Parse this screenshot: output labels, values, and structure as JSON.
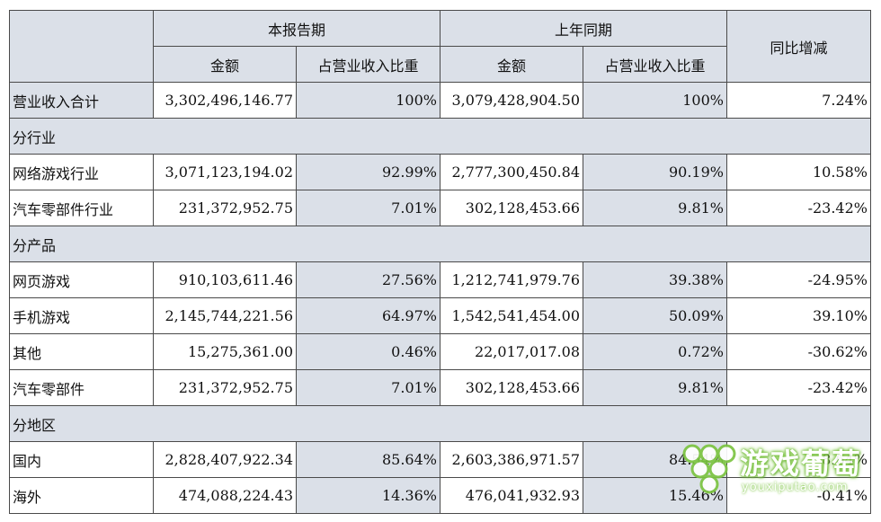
{
  "header": {
    "current_period": "本报告期",
    "prior_period": "上年同期",
    "yoy": "同比增减",
    "amount": "金额",
    "share": "占营业收入比重"
  },
  "total_row": {
    "label": "营业收入合计",
    "cur_amount": "3,302,496,146.77",
    "cur_share": "100%",
    "prior_amount": "3,079,428,904.50",
    "prior_share": "100%",
    "yoy": "7.24%"
  },
  "sections": [
    {
      "title": "分行业",
      "rows": [
        {
          "label": "网络游戏行业",
          "cur_amount": "3,071,123,194.02",
          "cur_share": "92.99%",
          "prior_amount": "2,777,300,450.84",
          "prior_share": "90.19%",
          "yoy": "10.58%"
        },
        {
          "label": "汽车零部件行业",
          "cur_amount": "231,372,952.75",
          "cur_share": "7.01%",
          "prior_amount": "302,128,453.66",
          "prior_share": "9.81%",
          "yoy": "-23.42%"
        }
      ]
    },
    {
      "title": "分产品",
      "rows": [
        {
          "label": "网页游戏",
          "cur_amount": "910,103,611.46",
          "cur_share": "27.56%",
          "prior_amount": "1,212,741,979.76",
          "prior_share": "39.38%",
          "yoy": "-24.95%"
        },
        {
          "label": "手机游戏",
          "cur_amount": "2,145,744,221.56",
          "cur_share": "64.97%",
          "prior_amount": "1,542,541,454.00",
          "prior_share": "50.09%",
          "yoy": "39.10%"
        },
        {
          "label": "其他",
          "cur_amount": "15,275,361.00",
          "cur_share": "0.46%",
          "prior_amount": "22,017,017.08",
          "prior_share": "0.72%",
          "yoy": "-30.62%"
        },
        {
          "label": "汽车零部件",
          "cur_amount": "231,372,952.75",
          "cur_share": "7.01%",
          "prior_amount": "302,128,453.66",
          "prior_share": "9.81%",
          "yoy": "-23.42%"
        }
      ]
    },
    {
      "title": "分地区",
      "rows": [
        {
          "label": "国内",
          "cur_amount": "2,828,407,922.34",
          "cur_share": "85.64%",
          "prior_amount": "2,603,386,971.57",
          "prior_share": "84.54%",
          "yoy": "8.64%"
        },
        {
          "label": "海外",
          "cur_amount": "474,088,224.43",
          "cur_share": "14.36%",
          "prior_amount": "476,041,932.93",
          "prior_share": "15.46%",
          "yoy": "-0.41%"
        }
      ]
    }
  ],
  "watermark": {
    "title": "游戏葡萄",
    "subtitle": "youxiputao.com",
    "color": "#7cc442"
  },
  "colors": {
    "header_fill": "#dbe0e8",
    "border": "#4a4a4a"
  }
}
